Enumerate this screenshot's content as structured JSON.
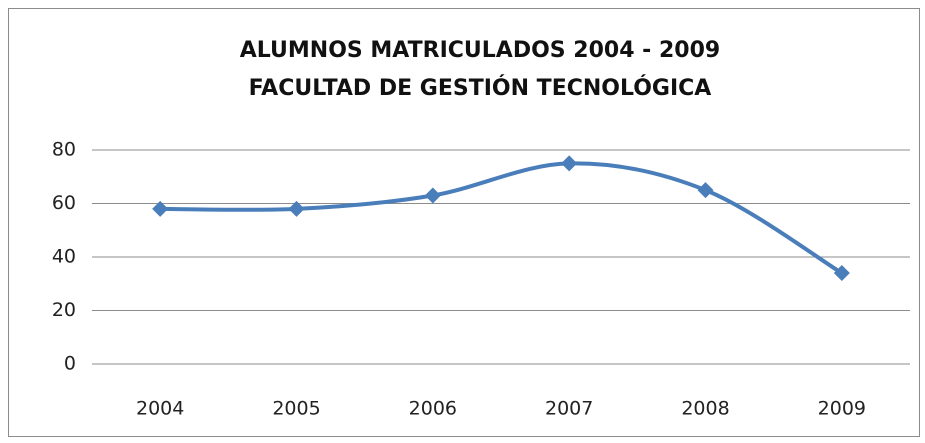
{
  "chart_data": {
    "type": "line",
    "title": [
      "ALUMNOS MATRICULADOS 2004 - 2009",
      "FACULTAD DE GESTIÓN TECNOLÓGICA"
    ],
    "categories": [
      "2004",
      "2005",
      "2006",
      "2007",
      "2008",
      "2009"
    ],
    "values": [
      58,
      58,
      63,
      75,
      65,
      34
    ],
    "color": "#4a7ebb",
    "smooth": true,
    "marker": "diamond",
    "ylim": [
      0,
      80
    ],
    "yticks": [
      0,
      20,
      40,
      60,
      80
    ],
    "grid": true
  }
}
